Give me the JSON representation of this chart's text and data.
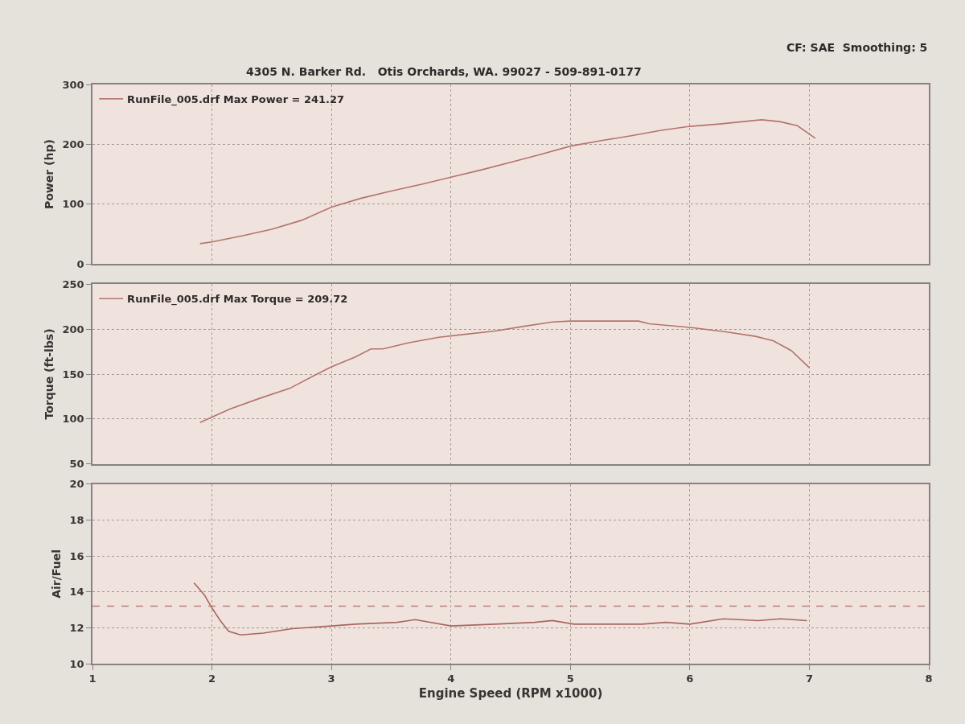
{
  "chart_data": [
    {
      "type": "line",
      "ylabel": "Power (hp)",
      "annotations": [
        "4305 N. Barker Rd.   Otis Orchards, WA. 99027 - 509-891-0177",
        "CF: SAE  Smoothing: 5"
      ],
      "x": [
        1.9,
        2.0,
        2.25,
        2.5,
        2.75,
        3.0,
        3.25,
        3.5,
        3.75,
        4.0,
        4.25,
        4.5,
        4.75,
        5.0,
        5.25,
        5.5,
        5.75,
        6.0,
        6.25,
        6.5,
        6.6,
        6.75,
        6.9,
        7.05
      ],
      "series": [
        {
          "name": "RunFile_005.drf Max Power = 241.27",
          "color": "#b4746c",
          "values": [
            34,
            37,
            47,
            58,
            73,
            95,
            110,
            122,
            133,
            145,
            157,
            170,
            183,
            197,
            206,
            214,
            223,
            230,
            234,
            239,
            241,
            238,
            231,
            210
          ]
        }
      ],
      "xlim": [
        1,
        8
      ],
      "xticks": [
        1,
        2,
        3,
        4,
        5,
        6,
        7,
        8
      ],
      "ylim": [
        0,
        300
      ],
      "yticks": [
        0,
        100,
        200,
        300
      ],
      "grid": true,
      "legend": "top left",
      "tick_labels": "y"
    },
    {
      "type": "line",
      "ylabel": "Torque (ft-lbs)",
      "x": [
        1.9,
        2.0,
        2.15,
        2.4,
        2.65,
        2.85,
        3.0,
        3.2,
        3.33,
        3.43,
        3.65,
        3.9,
        4.1,
        4.37,
        4.6,
        4.85,
        5.0,
        5.3,
        5.57,
        5.66,
        6.0,
        6.3,
        6.55,
        6.7,
        6.85,
        7.0
      ],
      "series": [
        {
          "name": "RunFile_005.drf Max Torque = 209.72",
          "color": "#b4746c",
          "values": [
            96,
            102,
            111,
            123,
            134,
            148,
            158,
            169,
            178,
            178,
            185,
            191,
            194,
            198,
            203,
            208,
            209,
            209,
            209,
            206,
            202,
            197,
            192,
            187,
            176,
            157
          ]
        }
      ],
      "xlim": [
        1,
        8
      ],
      "xticks": [
        1,
        2,
        3,
        4,
        5,
        6,
        7,
        8
      ],
      "ylim": [
        50,
        250
      ],
      "yticks": [
        50,
        100,
        150,
        200,
        250
      ],
      "grid": true,
      "legend": "top left",
      "tick_labels": "y"
    },
    {
      "type": "line",
      "ylabel": "Air/Fuel",
      "xlabel": "Engine Speed (RPM x1000)",
      "x": [
        1.85,
        1.94,
        2.0,
        2.07,
        2.14,
        2.24,
        2.43,
        2.67,
        3.0,
        3.2,
        3.55,
        3.7,
        4.0,
        4.37,
        4.7,
        4.85,
        5.03,
        5.32,
        5.6,
        5.8,
        6.0,
        6.28,
        6.57,
        6.76,
        6.98
      ],
      "series": [
        {
          "color": "#a8665e",
          "values": [
            14.5,
            13.8,
            13.1,
            12.4,
            11.8,
            11.6,
            11.7,
            11.95,
            12.1,
            12.2,
            12.3,
            12.45,
            12.1,
            12.2,
            12.3,
            12.4,
            12.2,
            12.2,
            12.2,
            12.3,
            12.2,
            12.5,
            12.4,
            12.5,
            12.4
          ]
        }
      ],
      "ref_lines": [
        {
          "axis": "y",
          "value": 13.2,
          "color": "#b88078",
          "line_style": "dashed"
        }
      ],
      "xlim": [
        1,
        8
      ],
      "xticks": [
        1,
        2,
        3,
        4,
        5,
        6,
        7,
        8
      ],
      "ylim": [
        10,
        20
      ],
      "yticks": [
        10,
        12,
        14,
        16,
        18,
        20
      ],
      "grid": true
    }
  ]
}
